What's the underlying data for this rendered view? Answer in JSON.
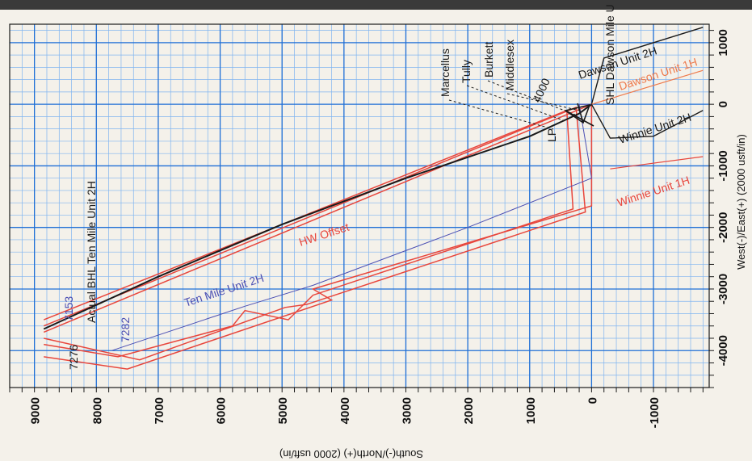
{
  "chart_data": {
    "type": "line",
    "title": "",
    "xlabel": "South(-)/North(+) (2000 usft/in)",
    "ylabel": "West(-)/East(+) (2000 usft/in)",
    "x_direction": "decreasing to the right",
    "y_direction": "increasing upward",
    "xlim": [
      9400,
      -1900
    ],
    "ylim": [
      -4600,
      1300
    ],
    "x_ticks": [
      {
        "value": 9000,
        "label": "9000"
      },
      {
        "value": 8000,
        "label": "8000"
      },
      {
        "value": 7000,
        "label": "7000"
      },
      {
        "value": 6000,
        "label": "6000"
      },
      {
        "value": 5000,
        "label": "5000"
      },
      {
        "value": 4000,
        "label": "4000"
      },
      {
        "value": 3000,
        "label": "3000"
      },
      {
        "value": 2000,
        "label": "2000"
      },
      {
        "value": 1000,
        "label": "1000"
      },
      {
        "value": 0,
        "label": "0"
      },
      {
        "value": -1000,
        "label": "-1000"
      }
    ],
    "y_ticks": [
      {
        "value": 1000,
        "label": "1000"
      },
      {
        "value": 0,
        "label": "0"
      },
      {
        "value": -1000,
        "label": "-1000"
      },
      {
        "value": -2000,
        "label": "-2000"
      },
      {
        "value": -3000,
        "label": "-3000"
      },
      {
        "value": -4000,
        "label": "-4000"
      }
    ],
    "grid": true,
    "colors": {
      "grid_major": "#1f6fd6",
      "grid_minor": "#7fb4f0",
      "black": "#1a1a1a",
      "red": "#e8463c",
      "orange": "#ee7a4c",
      "blue": "#4b4fb3"
    },
    "series": [
      {
        "name": "Actual BHL Ten Mile Unit 2H",
        "color": "#1a1a1a",
        "width": 2,
        "points": [
          [
            8850,
            -3650
          ],
          [
            7000,
            -2800
          ],
          [
            5000,
            -1950
          ],
          [
            3000,
            -1200
          ],
          [
            1000,
            -520
          ],
          [
            200,
            -150
          ],
          [
            0,
            0
          ]
        ]
      },
      {
        "name": "Ten Mile Unit 2H",
        "color": "#4b4fb3",
        "width": 1,
        "points": [
          [
            7750,
            -4000
          ],
          [
            5600,
            -3280
          ],
          [
            4500,
            -2940
          ],
          [
            2000,
            -2000
          ],
          [
            0,
            -1200
          ],
          [
            200,
            0
          ],
          [
            0,
            0
          ]
        ]
      },
      {
        "name": "Dawson Unit 2H",
        "color": "#1a1a1a",
        "width": 1.4,
        "points": [
          [
            0,
            0
          ],
          [
            -100,
            380
          ],
          [
            -200,
            750
          ],
          [
            -1800,
            1250
          ]
        ]
      },
      {
        "name": "Dawson Unit 1H",
        "color": "#ee7a4c",
        "width": 1.2,
        "points": [
          [
            0,
            0
          ],
          [
            -1800,
            550
          ]
        ]
      },
      {
        "name": "Winnie Unit 2H",
        "color": "#1a1a1a",
        "width": 1.4,
        "points": [
          [
            0,
            0
          ],
          [
            -300,
            -550
          ],
          [
            -1000,
            -520
          ],
          [
            -1800,
            -100
          ]
        ]
      },
      {
        "name": "Winnie Unit 1H",
        "color": "#e8463c",
        "width": 1.2,
        "points": [
          [
            -300,
            -1050
          ],
          [
            -1800,
            -850
          ]
        ]
      }
    ],
    "lease_lines": [
      {
        "name": "outer",
        "color": "#e8463c",
        "points": [
          [
            8850,
            -4100
          ],
          [
            7500,
            -4300
          ],
          [
            4200,
            -3180
          ],
          [
            4500,
            -3000
          ],
          [
            0,
            -1650
          ],
          [
            0,
            0
          ],
          [
            8850,
            -3700
          ]
        ]
      },
      {
        "name": "inner",
        "color": "#e8463c",
        "points": [
          [
            8850,
            -3900
          ],
          [
            7650,
            -4100
          ],
          [
            5800,
            -3600
          ],
          [
            5600,
            -3350
          ],
          [
            4900,
            -3500
          ],
          [
            4500,
            -3100
          ],
          [
            300,
            -1700
          ],
          [
            400,
            -100
          ],
          [
            8850,
            -3500
          ]
        ]
      },
      {
        "name": "setback",
        "color": "#e8463c",
        "points": [
          [
            8850,
            -3800
          ],
          [
            7300,
            -4150
          ],
          [
            4950,
            -3300
          ],
          [
            4600,
            -3250
          ],
          [
            100,
            -1750
          ],
          [
            250,
            -50
          ],
          [
            8850,
            -3600
          ]
        ]
      }
    ],
    "annotations": {
      "hw_offset": "HW Offset",
      "shl": "SHL Dawson Mile U",
      "lp": "LP",
      "md_4000": "4000",
      "md_7153": "7153",
      "md_7276": "7276",
      "md_7282": "7282",
      "formations": [
        "Marcellus",
        "Tully",
        "Burkett",
        "Middlesex"
      ]
    }
  }
}
